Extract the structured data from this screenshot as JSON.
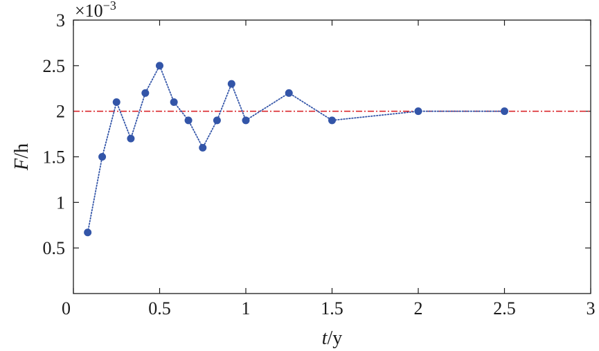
{
  "chart_data": {
    "type": "line",
    "title": "",
    "xlabel": {
      "var": "t",
      "unit": "/y"
    },
    "ylabel": {
      "var": "F",
      "unit": "/h"
    },
    "y_scale_multiplier": {
      "base": "×10",
      "exponent": "−3"
    },
    "xlim": [
      0,
      3
    ],
    "ylim": [
      0,
      3
    ],
    "x_ticks": [
      0,
      0.5,
      1,
      1.5,
      2,
      2.5,
      3
    ],
    "x_tick_labels": [
      "0",
      "0.5",
      "1",
      "1.5",
      "2",
      "2.5",
      "3"
    ],
    "y_ticks": [
      0.5,
      1,
      1.5,
      2,
      2.5,
      3
    ],
    "y_tick_labels": [
      "0.5",
      "1",
      "1.5",
      "2",
      "2.5",
      "3"
    ],
    "grid": false,
    "legend": "none",
    "series": [
      {
        "style": "dotted-line-with-markers",
        "color": "#3355a8",
        "x": [
          0.083,
          0.167,
          0.25,
          0.333,
          0.417,
          0.5,
          0.583,
          0.667,
          0.75,
          0.833,
          0.917,
          1.0,
          1.25,
          1.5,
          2.0,
          2.5
        ],
        "y": [
          0.67,
          1.5,
          2.1,
          1.7,
          2.2,
          2.5,
          2.1,
          1.9,
          1.6,
          1.9,
          2.3,
          1.9,
          2.2,
          1.9,
          2.0,
          2.0
        ]
      }
    ],
    "reference_lines": [
      {
        "orientation": "horizontal",
        "y": 2.0,
        "style": "dash-dot",
        "color": "#d9262b"
      }
    ]
  }
}
